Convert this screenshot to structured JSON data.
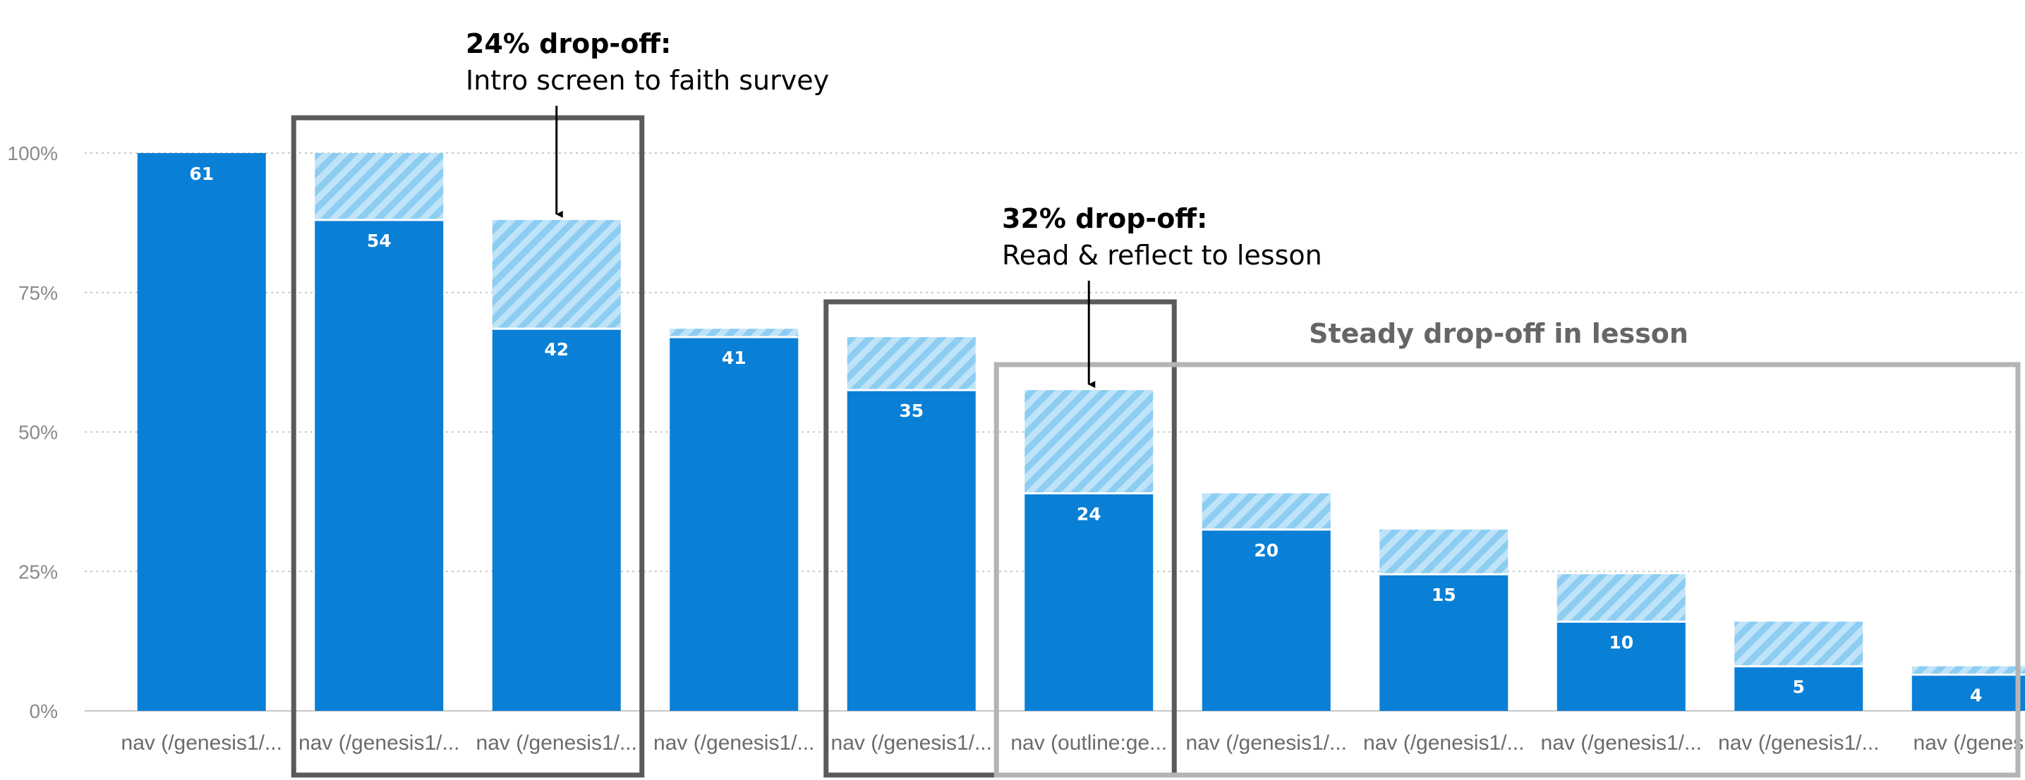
{
  "chart_data": {
    "type": "bar",
    "title": "",
    "xlabel": "",
    "ylabel": "",
    "ylim": [
      0,
      100
    ],
    "yticks": [
      0,
      25,
      50,
      75,
      100
    ],
    "ytick_labels": [
      "0%",
      "25%",
      "50%",
      "75%",
      "100%"
    ],
    "grid": true,
    "colors": {
      "solid": "#0a7fd6",
      "hatch": "#a6d8f5",
      "grid": "#c8c8c8",
      "box_dark": "#5a5a5a",
      "box_light": "#b4b4b4"
    },
    "categories": [
      "nav (/genesis1/...",
      "nav (/genesis1/...",
      "nav (/genesis1/...",
      "nav (/genesis1/...",
      "nav (/genesis1/...",
      "nav (outline:ge...",
      "nav (/genesis1/...",
      "nav (/genesis1/...",
      "nav (/genesis1/...",
      "nav (/genesis1/...",
      "nav (/genesis"
    ],
    "series": [
      {
        "values": [
          100,
          88,
          68.5,
          67,
          57.5,
          39,
          32.5,
          24.5,
          16,
          8,
          6.5
        ]
      },
      {
        "values": [
          100,
          100,
          88,
          68.5,
          67,
          57.5,
          39,
          32.5,
          24.5,
          16,
          8
        ]
      }
    ],
    "data_labels": [
      "61",
      "54",
      "42",
      "41",
      "35",
      "24",
      "20",
      "15",
      "10",
      "5",
      "4"
    ],
    "annotations": [
      {
        "title": "24% drop-off:",
        "text": "Intro screen to faith survey"
      },
      {
        "title": "32% drop-off:",
        "text": "Read & reflect to lesson"
      },
      {
        "title": "Steady drop-off in lesson",
        "text": ""
      }
    ]
  }
}
